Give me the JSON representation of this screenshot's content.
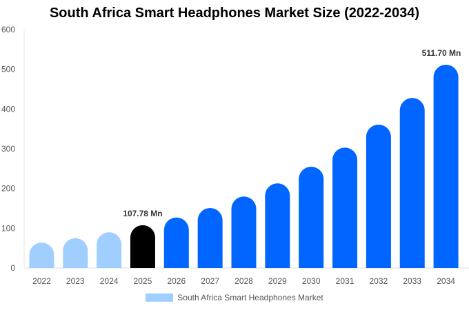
{
  "chart_data": {
    "type": "bar",
    "title": "South Africa Smart Headphones Market Size (2022-2034)",
    "categories": [
      "2022",
      "2023",
      "2024",
      "2025",
      "2026",
      "2027",
      "2028",
      "2029",
      "2030",
      "2031",
      "2032",
      "2033",
      "2034"
    ],
    "series": [
      {
        "name": "South Africa Smart Headphones Market",
        "values": [
          64,
          75,
          90,
          107.78,
          127,
          151,
          180,
          213,
          255,
          303,
          361,
          428,
          511.7
        ]
      }
    ],
    "data_labels": {
      "3": "107.78 Mn",
      "12": "511.70 Mn"
    },
    "ylim": [
      0,
      600
    ],
    "yticks": [
      0,
      100,
      200,
      300,
      400,
      500,
      600
    ],
    "colors": {
      "historical": "#a0cfff",
      "base_year": "#000000",
      "forecast": "#0066ff"
    },
    "base_year_index": 3,
    "grid": false,
    "legend_position": "bottom"
  }
}
